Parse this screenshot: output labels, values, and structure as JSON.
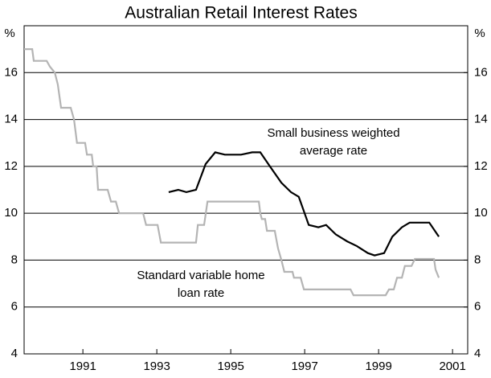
{
  "chart_data": {
    "type": "line",
    "title": "Australian Retail Interest Rates",
    "y_label": "%",
    "y2_label": "%",
    "xlim": [
      1989.41,
      2001.41
    ],
    "xticks": [
      1991,
      1993,
      1995,
      1997,
      1999,
      2001
    ],
    "ylim": [
      4,
      18
    ],
    "yticks": [
      4,
      6,
      8,
      10,
      12,
      14,
      16
    ],
    "y2lim": [
      4,
      18
    ],
    "y2ticks": [
      4,
      6,
      8,
      10,
      12,
      14,
      16
    ],
    "grid": true,
    "series": [
      {
        "name": "Small business weighted average rate",
        "color": "#000000",
        "x": [
          1993.32,
          1993.58,
          1993.8,
          1994.06,
          1994.32,
          1994.58,
          1994.84,
          1995.28,
          1995.58,
          1995.8,
          1996.06,
          1996.37,
          1996.63,
          1996.84,
          1997.11,
          1997.37,
          1997.58,
          1997.84,
          1998.15,
          1998.41,
          1998.71,
          1998.89,
          1999.15,
          1999.37,
          1999.63,
          1999.84,
          2000.11,
          2000.37,
          2000.63
        ],
        "values": [
          10.9,
          11,
          10.9,
          11,
          12.1,
          12.6,
          12.5,
          12.5,
          12.6,
          12.6,
          12,
          11.3,
          10.9,
          10.7,
          9.5,
          9.4,
          9.5,
          9.1,
          8.8,
          8.6,
          8.3,
          8.2,
          8.3,
          9,
          9.4,
          9.6,
          9.6,
          9.6,
          9
        ]
      },
      {
        "name": "Standard variable home loan rate",
        "color": "#b4b4b4",
        "x": [
          1989.41,
          1989.63,
          1989.67,
          1990.02,
          1990.11,
          1990.24,
          1990.32,
          1990.41,
          1990.67,
          1990.76,
          1990.84,
          1991.06,
          1991.11,
          1991.24,
          1991.28,
          1991.37,
          1991.41,
          1991.67,
          1991.76,
          1991.89,
          1991.98,
          1992.63,
          1992.71,
          1993.02,
          1993.11,
          1994.06,
          1994.11,
          1994.28,
          1994.37,
          1995.76,
          1995.8,
          1995.84,
          1995.93,
          1995.98,
          1996.19,
          1996.28,
          1996.37,
          1996.45,
          1996.67,
          1996.71,
          1996.89,
          1996.98,
          1998.24,
          1998.32,
          1999.19,
          1999.28,
          1999.41,
          1999.5,
          1999.63,
          1999.71,
          1999.89,
          1999.98,
          2000.5,
          2000.54,
          2000.63
        ],
        "values": [
          17,
          17,
          16.5,
          16.5,
          16.25,
          16,
          15.5,
          14.5,
          14.5,
          14,
          13,
          13,
          12.5,
          12.5,
          12,
          12,
          11,
          11,
          10.5,
          10.5,
          10,
          10,
          9.5,
          9.5,
          8.75,
          8.75,
          9.5,
          9.5,
          10.5,
          10.5,
          10,
          9.75,
          9.75,
          9.25,
          9.25,
          8.5,
          8,
          7.5,
          7.5,
          7.25,
          7.25,
          6.75,
          6.75,
          6.5,
          6.5,
          6.75,
          6.75,
          7.25,
          7.25,
          7.75,
          7.75,
          8.05,
          8.05,
          7.6,
          7.25
        ]
      }
    ]
  }
}
